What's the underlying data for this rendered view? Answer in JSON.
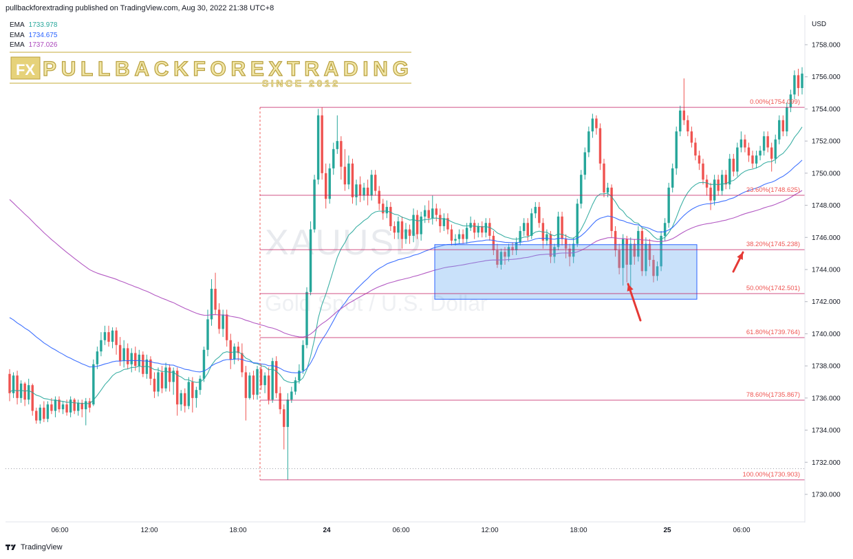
{
  "header": {
    "publish_text": "pullbackforextrading published on TradingView.com, Aug 30, 2022 21:38 UTC+8"
  },
  "watermark": {
    "brand": "PULLBACKFOREXTRADING",
    "since": "SINCE 2012",
    "badge": "FX",
    "symbol": "XAUUSD",
    "description": "Gold Spot / U.S. Dollar"
  },
  "emas": [
    {
      "label": "EMA",
      "value": "1733.978",
      "color": "#26a69a"
    },
    {
      "label": "EMA",
      "value": "1734.675",
      "color": "#2962ff"
    },
    {
      "label": "EMA",
      "value": "1737.026",
      "color": "#ab47bc"
    }
  ],
  "footer": {
    "brand": "TradingView"
  },
  "chart_data": {
    "type": "candlestick",
    "currency": "USD",
    "y_ticks": [
      "1758.000",
      "1756.000",
      "1754.000",
      "1752.000",
      "1750.000",
      "1748.000",
      "1746.000",
      "1744.000",
      "1742.000",
      "1740.000",
      "1738.000",
      "1736.000",
      "1734.000",
      "1732.000",
      "1730.000"
    ],
    "ylim": [
      1729.2,
      1759.5
    ],
    "x_ticks": [
      "06:00",
      "12:00",
      "18:00",
      "24",
      "06:00",
      "12:00",
      "18:00",
      "25",
      "06:00"
    ],
    "x_ticks_bold": [
      false,
      false,
      false,
      true,
      false,
      false,
      false,
      true,
      false
    ],
    "fibonacci": [
      {
        "label": "0.00%(1754.099)",
        "price": 1754.099
      },
      {
        "label": "23.60%(1748.625)",
        "price": 1748.625
      },
      {
        "label": "38.20%(1745.238)",
        "price": 1745.238
      },
      {
        "label": "50.00%(1742.501)",
        "price": 1742.501
      },
      {
        "label": "61.80%(1739.764)",
        "price": 1739.764
      },
      {
        "label": "78.60%(1735.867)",
        "price": 1735.867
      },
      {
        "label": "100.00%(1730.903)",
        "price": 1730.903
      }
    ],
    "zone": {
      "top": 1745.55,
      "bottom": 1742.15
    },
    "low_dotted_price": 1731.6,
    "candles": [
      [
        1737.5,
        1736.3,
        1737.8,
        1735.8
      ],
      [
        1736.3,
        1737.4,
        1737.6,
        1736.0
      ],
      [
        1737.4,
        1736.0,
        1737.7,
        1735.6
      ],
      [
        1736.0,
        1736.9,
        1737.1,
        1735.7
      ],
      [
        1736.9,
        1735.9,
        1737.0,
        1735.5
      ],
      [
        1735.9,
        1736.8,
        1737.2,
        1735.6
      ],
      [
        1736.8,
        1735.2,
        1736.9,
        1734.9
      ],
      [
        1735.2,
        1734.6,
        1735.4,
        1734.4
      ],
      [
        1734.6,
        1735.4,
        1735.6,
        1734.4
      ],
      [
        1735.4,
        1734.7,
        1735.8,
        1734.5
      ],
      [
        1734.7,
        1735.6,
        1735.8,
        1734.5
      ],
      [
        1735.6,
        1735.2,
        1736.0,
        1735.0
      ],
      [
        1735.2,
        1735.9,
        1736.1,
        1734.8
      ],
      [
        1735.9,
        1735.3,
        1736.1,
        1735.1
      ],
      [
        1735.3,
        1735.6,
        1735.8,
        1735.0
      ],
      [
        1735.6,
        1735.1,
        1735.9,
        1734.9
      ],
      [
        1735.1,
        1735.9,
        1736.1,
        1734.8
      ],
      [
        1735.9,
        1735.2,
        1736.0,
        1735.0
      ],
      [
        1735.2,
        1735.7,
        1735.9,
        1734.9
      ],
      [
        1735.7,
        1735.3,
        1735.9,
        1734.8
      ],
      [
        1735.3,
        1735.8,
        1736.0,
        1734.3
      ],
      [
        1735.8,
        1735.4,
        1736.0,
        1735.1
      ],
      [
        1735.6,
        1738.1,
        1738.4,
        1735.5
      ],
      [
        1738.1,
        1738.9,
        1739.2,
        1737.8
      ],
      [
        1738.9,
        1739.6,
        1740.1,
        1738.6
      ],
      [
        1739.6,
        1740.1,
        1740.5,
        1739.3
      ],
      [
        1740.1,
        1739.5,
        1740.5,
        1739.2
      ],
      [
        1739.5,
        1740.2,
        1740.4,
        1739.1
      ],
      [
        1740.2,
        1739.3,
        1740.4,
        1738.7
      ],
      [
        1739.3,
        1738.3,
        1739.8,
        1738.0
      ],
      [
        1738.3,
        1739.1,
        1739.6,
        1737.9
      ],
      [
        1739.1,
        1738.1,
        1739.4,
        1737.8
      ],
      [
        1738.1,
        1738.8,
        1739.1,
        1737.6
      ],
      [
        1738.8,
        1738.0,
        1739.2,
        1737.7
      ],
      [
        1738.0,
        1738.7,
        1739.0,
        1737.6
      ],
      [
        1738.7,
        1737.5,
        1738.9,
        1737.3
      ],
      [
        1737.5,
        1738.4,
        1738.7,
        1737.2
      ],
      [
        1738.4,
        1737.2,
        1738.6,
        1736.8
      ],
      [
        1737.2,
        1736.4,
        1737.6,
        1736.0
      ],
      [
        1736.4,
        1737.6,
        1737.9,
        1736.1
      ],
      [
        1737.6,
        1736.6,
        1738.0,
        1736.3
      ],
      [
        1736.6,
        1737.9,
        1738.2,
        1736.4
      ],
      [
        1737.9,
        1737.0,
        1738.1,
        1736.4
      ],
      [
        1737.0,
        1737.7,
        1737.9,
        1736.2
      ],
      [
        1737.7,
        1735.6,
        1737.9,
        1734.9
      ],
      [
        1735.6,
        1736.3,
        1736.5,
        1735.2
      ],
      [
        1736.3,
        1735.5,
        1736.6,
        1735.1
      ],
      [
        1735.5,
        1737.0,
        1737.3,
        1735.3
      ],
      [
        1737.0,
        1736.0,
        1737.3,
        1735.1
      ],
      [
        1736.0,
        1736.5,
        1736.7,
        1735.4
      ],
      [
        1736.5,
        1737.2,
        1737.4,
        1736.2
      ],
      [
        1737.2,
        1739.0,
        1739.2,
        1737.0
      ],
      [
        1739.0,
        1740.9,
        1741.5,
        1738.6
      ],
      [
        1740.9,
        1742.8,
        1743.4,
        1740.5
      ],
      [
        1742.8,
        1741.5,
        1743.8,
        1741.2
      ],
      [
        1741.5,
        1740.3,
        1741.9,
        1740.0
      ],
      [
        1740.3,
        1741.2,
        1741.5,
        1739.8
      ],
      [
        1741.2,
        1739.6,
        1741.5,
        1739.2
      ],
      [
        1739.6,
        1738.4,
        1740.0,
        1737.8
      ],
      [
        1738.4,
        1739.2,
        1739.4,
        1738.1
      ],
      [
        1739.2,
        1738.8,
        1739.5,
        1738.3
      ],
      [
        1738.8,
        1737.6,
        1739.4,
        1737.3
      ],
      [
        1737.6,
        1736.0,
        1738.0,
        1734.6
      ],
      [
        1736.0,
        1737.4,
        1737.6,
        1735.9
      ],
      [
        1737.4,
        1736.2,
        1737.7,
        1735.9
      ],
      [
        1736.2,
        1737.8,
        1738.0,
        1735.9
      ],
      [
        1737.8,
        1736.8,
        1738.1,
        1736.5
      ],
      [
        1736.8,
        1737.4,
        1737.6,
        1736.3
      ],
      [
        1737.4,
        1735.9,
        1737.9,
        1735.6
      ],
      [
        1735.9,
        1738.3,
        1738.5,
        1735.7
      ],
      [
        1738.3,
        1736.3,
        1738.6,
        1736.0
      ],
      [
        1736.3,
        1735.3,
        1736.7,
        1735.0
      ],
      [
        1735.3,
        1734.2,
        1735.6,
        1732.8
      ],
      [
        1734.2,
        1735.9,
        1736.3,
        1730.9
      ],
      [
        1735.9,
        1736.4,
        1736.7,
        1735.7
      ],
      [
        1736.4,
        1737.1,
        1737.3,
        1736.2
      ],
      [
        1737.1,
        1737.7,
        1738.1,
        1736.9
      ],
      [
        1737.7,
        1739.3,
        1739.6,
        1737.5
      ],
      [
        1739.3,
        1742.6,
        1742.9,
        1739.1
      ],
      [
        1742.6,
        1746.5,
        1747.0,
        1742.4
      ],
      [
        1746.5,
        1749.6,
        1749.9,
        1746.3
      ],
      [
        1749.6,
        1753.6,
        1754.0,
        1749.3
      ],
      [
        1753.6,
        1750.0,
        1754.1,
        1749.6
      ],
      [
        1750.0,
        1748.4,
        1750.6,
        1747.8
      ],
      [
        1748.4,
        1750.3,
        1750.6,
        1748.1
      ],
      [
        1750.3,
        1751.5,
        1751.9,
        1749.9
      ],
      [
        1751.5,
        1752.0,
        1753.6,
        1751.2
      ],
      [
        1752.0,
        1750.4,
        1752.3,
        1749.6
      ],
      [
        1750.4,
        1749.3,
        1751.5,
        1748.9
      ],
      [
        1749.3,
        1750.6,
        1751.1,
        1749.0
      ],
      [
        1750.6,
        1748.5,
        1750.9,
        1748.1
      ],
      [
        1748.5,
        1749.3,
        1749.6,
        1748.0
      ],
      [
        1749.3,
        1748.6,
        1749.8,
        1748.2
      ],
      [
        1748.6,
        1749.1,
        1749.4,
        1748.3
      ],
      [
        1749.1,
        1748.6,
        1749.6,
        1748.0
      ],
      [
        1748.6,
        1749.9,
        1750.2,
        1748.3
      ],
      [
        1749.9,
        1748.9,
        1750.2,
        1748.6
      ],
      [
        1748.9,
        1748.1,
        1749.2,
        1747.7
      ],
      [
        1748.1,
        1747.5,
        1748.4,
        1747.1
      ],
      [
        1747.5,
        1747.9,
        1748.3,
        1747.2
      ],
      [
        1747.9,
        1746.7,
        1748.2,
        1746.4
      ],
      [
        1746.7,
        1746.3,
        1747.0,
        1745.9
      ],
      [
        1746.3,
        1747.0,
        1747.3,
        1745.9
      ],
      [
        1747.0,
        1745.9,
        1747.3,
        1745.3
      ],
      [
        1745.9,
        1746.5,
        1746.9,
        1745.6
      ],
      [
        1746.5,
        1746.1,
        1746.8,
        1745.6
      ],
      [
        1746.1,
        1747.4,
        1747.8,
        1745.7
      ],
      [
        1747.4,
        1746.2,
        1747.7,
        1745.9
      ],
      [
        1746.2,
        1747.3,
        1747.6,
        1745.8
      ],
      [
        1747.3,
        1747.7,
        1748.0,
        1746.9
      ],
      [
        1747.7,
        1747.2,
        1748.3,
        1746.9
      ],
      [
        1747.2,
        1747.8,
        1748.6,
        1746.8
      ],
      [
        1747.8,
        1747.4,
        1748.1,
        1747.0
      ],
      [
        1747.4,
        1746.7,
        1747.8,
        1746.3
      ],
      [
        1746.7,
        1747.2,
        1747.5,
        1746.4
      ],
      [
        1747.2,
        1746.5,
        1747.5,
        1746.2
      ],
      [
        1746.5,
        1745.8,
        1746.8,
        1745.5
      ],
      [
        1745.8,
        1745.9,
        1746.2,
        1745.5
      ],
      [
        1745.9,
        1746.2,
        1746.5,
        1745.6
      ],
      [
        1746.2,
        1745.9,
        1746.5,
        1745.6
      ],
      [
        1745.9,
        1746.6,
        1746.9,
        1745.6
      ],
      [
        1746.6,
        1746.9,
        1747.3,
        1746.4
      ],
      [
        1746.9,
        1746.3,
        1747.1,
        1745.9
      ],
      [
        1746.3,
        1746.7,
        1746.9,
        1746.0
      ],
      [
        1746.7,
        1746.3,
        1747.0,
        1746.0
      ],
      [
        1746.3,
        1746.9,
        1747.2,
        1746.0
      ],
      [
        1746.9,
        1746.1,
        1747.2,
        1745.8
      ],
      [
        1746.1,
        1745.2,
        1746.4,
        1744.9
      ],
      [
        1745.2,
        1744.3,
        1745.6,
        1744.1
      ],
      [
        1744.3,
        1745.1,
        1745.3,
        1744.0
      ],
      [
        1745.1,
        1744.8,
        1745.4,
        1744.3
      ],
      [
        1744.8,
        1745.4,
        1745.6,
        1744.5
      ],
      [
        1745.4,
        1745.2,
        1745.7,
        1744.9
      ],
      [
        1745.2,
        1745.7,
        1746.0,
        1744.9
      ],
      [
        1745.7,
        1746.4,
        1746.7,
        1745.5
      ],
      [
        1746.4,
        1746.9,
        1747.2,
        1746.1
      ],
      [
        1746.9,
        1746.1,
        1747.2,
        1745.8
      ],
      [
        1746.1,
        1747.5,
        1747.8,
        1745.9
      ],
      [
        1747.5,
        1747.9,
        1748.2,
        1747.2
      ],
      [
        1747.9,
        1746.9,
        1748.2,
        1746.6
      ],
      [
        1746.9,
        1745.8,
        1747.2,
        1745.3
      ],
      [
        1745.8,
        1746.2,
        1746.5,
        1745.5
      ],
      [
        1746.2,
        1744.8,
        1746.4,
        1744.4
      ],
      [
        1744.8,
        1745.4,
        1745.6,
        1744.4
      ],
      [
        1745.4,
        1747.3,
        1747.6,
        1745.2
      ],
      [
        1747.3,
        1745.9,
        1747.6,
        1745.5
      ],
      [
        1745.9,
        1745.3,
        1746.2,
        1744.7
      ],
      [
        1745.3,
        1744.8,
        1745.6,
        1744.2
      ],
      [
        1744.8,
        1745.6,
        1746.0,
        1744.4
      ],
      [
        1745.6,
        1748.1,
        1748.4,
        1745.4
      ],
      [
        1748.1,
        1749.9,
        1750.2,
        1747.8
      ],
      [
        1749.9,
        1751.3,
        1751.6,
        1749.6
      ],
      [
        1751.3,
        1752.6,
        1752.9,
        1751.0
      ],
      [
        1752.6,
        1753.4,
        1753.7,
        1752.2
      ],
      [
        1753.4,
        1752.8,
        1753.6,
        1752.4
      ],
      [
        1752.8,
        1750.6,
        1753.1,
        1750.2
      ],
      [
        1750.6,
        1748.8,
        1750.9,
        1748.5
      ],
      [
        1748.8,
        1749.1,
        1749.4,
        1748.5
      ],
      [
        1749.1,
        1746.4,
        1749.3,
        1746.0
      ],
      [
        1746.4,
        1745.2,
        1746.7,
        1744.8
      ],
      [
        1745.2,
        1744.1,
        1745.6,
        1743.7
      ],
      [
        1744.1,
        1745.9,
        1746.2,
        1743.0
      ],
      [
        1745.9,
        1744.3,
        1746.1,
        1743.2
      ],
      [
        1744.3,
        1745.6,
        1746.0,
        1742.6
      ],
      [
        1745.6,
        1744.8,
        1745.9,
        1744.3
      ],
      [
        1744.8,
        1746.4,
        1746.7,
        1744.5
      ],
      [
        1746.4,
        1743.9,
        1746.6,
        1743.6
      ],
      [
        1743.9,
        1745.6,
        1746.0,
        1743.6
      ],
      [
        1745.6,
        1744.6,
        1745.9,
        1744.2
      ],
      [
        1744.6,
        1743.6,
        1744.9,
        1743.2
      ],
      [
        1743.6,
        1744.2,
        1744.5,
        1743.3
      ],
      [
        1744.2,
        1746.1,
        1746.4,
        1743.9
      ],
      [
        1746.1,
        1746.9,
        1747.2,
        1745.8
      ],
      [
        1746.9,
        1749.1,
        1749.4,
        1746.6
      ],
      [
        1749.1,
        1750.3,
        1750.6,
        1748.8
      ],
      [
        1750.3,
        1752.6,
        1752.9,
        1749.9
      ],
      [
        1752.6,
        1753.9,
        1754.2,
        1752.3
      ],
      [
        1753.9,
        1753.3,
        1755.9,
        1753.0
      ],
      [
        1753.3,
        1752.6,
        1753.6,
        1752.3
      ],
      [
        1752.6,
        1751.9,
        1752.9,
        1751.6
      ],
      [
        1751.9,
        1751.1,
        1752.2,
        1750.8
      ],
      [
        1751.1,
        1750.6,
        1751.4,
        1750.2
      ],
      [
        1750.6,
        1749.6,
        1750.9,
        1749.3
      ],
      [
        1749.6,
        1749.1,
        1749.9,
        1748.6
      ],
      [
        1749.1,
        1748.3,
        1749.4,
        1747.7
      ],
      [
        1748.3,
        1749.6,
        1749.9,
        1748.0
      ],
      [
        1749.6,
        1748.9,
        1749.9,
        1748.6
      ],
      [
        1748.9,
        1749.9,
        1750.2,
        1748.6
      ],
      [
        1749.9,
        1749.3,
        1750.2,
        1749.0
      ],
      [
        1749.3,
        1750.9,
        1751.2,
        1749.0
      ],
      [
        1750.9,
        1750.1,
        1751.2,
        1749.8
      ],
      [
        1750.1,
        1751.6,
        1751.9,
        1749.8
      ],
      [
        1751.6,
        1752.1,
        1752.6,
        1751.3
      ],
      [
        1752.1,
        1751.6,
        1752.4,
        1751.3
      ],
      [
        1751.6,
        1751.1,
        1751.9,
        1750.7
      ],
      [
        1751.1,
        1750.6,
        1751.4,
        1750.3
      ],
      [
        1750.6,
        1751.1,
        1751.4,
        1750.3
      ],
      [
        1751.1,
        1751.4,
        1751.7,
        1750.8
      ],
      [
        1751.4,
        1752.3,
        1752.6,
        1751.1
      ],
      [
        1752.3,
        1751.6,
        1752.6,
        1751.3
      ],
      [
        1751.6,
        1750.9,
        1751.9,
        1750.1
      ],
      [
        1750.9,
        1752.1,
        1752.4,
        1750.6
      ],
      [
        1752.1,
        1753.3,
        1753.6,
        1751.8
      ],
      [
        1753.3,
        1752.6,
        1753.6,
        1752.3
      ],
      [
        1752.6,
        1754.1,
        1754.4,
        1752.3
      ],
      [
        1754.1,
        1754.9,
        1755.2,
        1753.8
      ],
      [
        1754.9,
        1756.1,
        1756.4,
        1754.6
      ],
      [
        1756.1,
        1755.3,
        1756.5,
        1754.8
      ],
      [
        1755.3,
        1756.2,
        1756.6,
        1754.9
      ]
    ]
  }
}
